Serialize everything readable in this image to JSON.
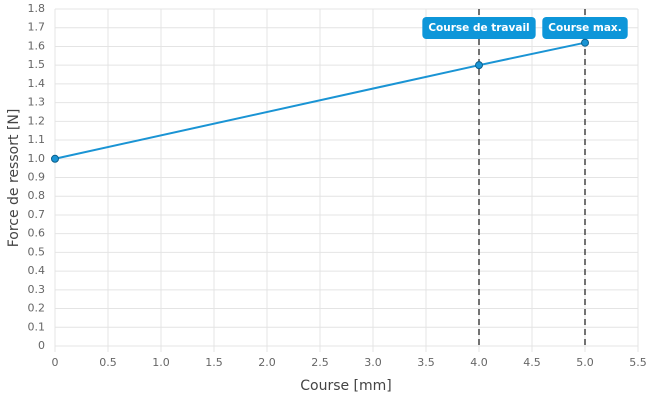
{
  "chart_data": {
    "type": "line",
    "x_label": "Course [mm]",
    "y_label": "Force de ressort [N]",
    "x": [
      0,
      4,
      5
    ],
    "series": [
      {
        "name": "Force",
        "color": "#1a94d4",
        "values": [
          1.0,
          1.5,
          1.62
        ]
      }
    ],
    "xlim": [
      0,
      5.5
    ],
    "xticks": [
      0,
      0.5,
      {
        "value": 1,
        "label": "1.0"
      },
      1.5,
      {
        "value": 2,
        "label": "2.0"
      },
      2.5,
      {
        "value": 3,
        "label": "3.0"
      },
      3.5,
      {
        "value": 4,
        "label": "4.0"
      },
      4.5,
      {
        "value": 5,
        "label": "5.0"
      },
      5.5
    ],
    "ylim": [
      0,
      1.8
    ],
    "yticks": [
      0,
      0.1,
      0.2,
      0.3,
      0.4,
      0.5,
      0.6,
      0.7,
      0.8,
      0.9,
      {
        "value": 1,
        "label": "1.0"
      },
      1.1,
      1.2,
      1.3,
      1.4,
      1.5,
      1.6,
      1.7,
      1.8
    ],
    "grid": true,
    "annotations": [
      {
        "x": 4,
        "label": "Course de travail",
        "color": "#0d96d9"
      },
      {
        "x": 5,
        "label": "Course max.",
        "color": "#0d96d9"
      }
    ]
  }
}
